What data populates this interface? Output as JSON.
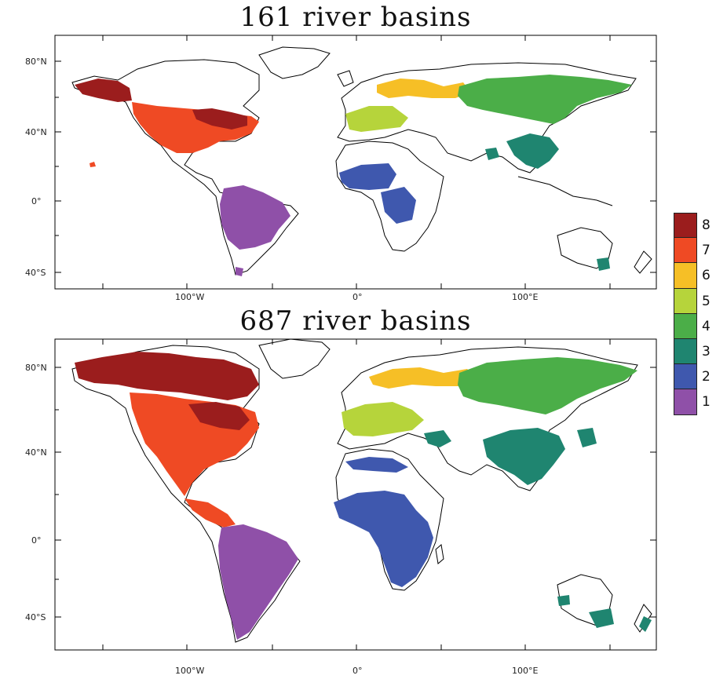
{
  "titles": {
    "top": "161 river basins",
    "bottom": "687 river basins"
  },
  "lat_labels": [
    "80°N",
    "40°N",
    "0°",
    "40°S"
  ],
  "lon_labels": [
    "100°W",
    "0°",
    "100°E"
  ],
  "legend": [
    {
      "label": "8",
      "color": "#9b1d1d"
    },
    {
      "label": "7",
      "color": "#ef4a24"
    },
    {
      "label": "6",
      "color": "#f6bf26"
    },
    {
      "label": "5",
      "color": "#b6d43b"
    },
    {
      "label": "4",
      "color": "#4bae48"
    },
    {
      "label": "3",
      "color": "#1f8570"
    },
    {
      "label": "2",
      "color": "#3f58ae"
    },
    {
      "label": "1",
      "color": "#8f50a8"
    }
  ]
}
